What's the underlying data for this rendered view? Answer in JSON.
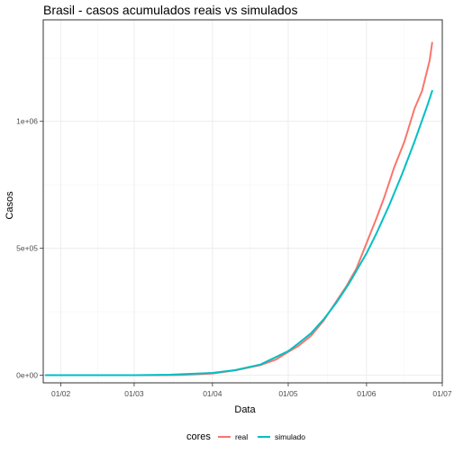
{
  "chart_data": {
    "type": "line",
    "title": "Brasil - casos acumulados reais vs simulados",
    "xlabel": "Data",
    "ylabel": "Casos",
    "x_tick_labels": [
      "01/02",
      "01/03",
      "01/04",
      "01/05",
      "01/06",
      "01/07"
    ],
    "x_tick_dates": [
      "2020-02-01",
      "2020-03-01",
      "2020-04-01",
      "2020-05-01",
      "2020-06-01",
      "2020-07-01"
    ],
    "y_tick_labels": [
      "0e+00",
      "5e+05",
      "1e+06"
    ],
    "y_tick_values": [
      0,
      500000,
      1000000
    ],
    "xlim": [
      "2020-01-25",
      "2020-07-01"
    ],
    "ylim": [
      -30000,
      1400000
    ],
    "grid": true,
    "legend": {
      "title": "cores",
      "position": "bottom"
    },
    "series": [
      {
        "name": "real",
        "color": "#F8766D",
        "points": [
          [
            "2020-01-26",
            0
          ],
          [
            "2020-02-15",
            0
          ],
          [
            "2020-03-01",
            0
          ],
          [
            "2020-03-10",
            30
          ],
          [
            "2020-03-20",
            900
          ],
          [
            "2020-04-01",
            6800
          ],
          [
            "2020-04-10",
            19000
          ],
          [
            "2020-04-20",
            40000
          ],
          [
            "2020-04-26",
            61000
          ],
          [
            "2020-05-01",
            92000
          ],
          [
            "2020-05-05",
            115000
          ],
          [
            "2020-05-10",
            155000
          ],
          [
            "2020-05-15",
            215000
          ],
          [
            "2020-05-20",
            290000
          ],
          [
            "2020-05-24",
            350000
          ],
          [
            "2020-05-28",
            420000
          ],
          [
            "2020-06-01",
            520000
          ],
          [
            "2020-06-05",
            620000
          ],
          [
            "2020-06-08",
            700000
          ],
          [
            "2020-06-12",
            820000
          ],
          [
            "2020-06-16",
            920000
          ],
          [
            "2020-06-20",
            1050000
          ],
          [
            "2020-06-23",
            1120000
          ],
          [
            "2020-06-26",
            1240000
          ],
          [
            "2020-06-27",
            1310000
          ]
        ]
      },
      {
        "name": "simulado",
        "color": "#00BFC4",
        "points": [
          [
            "2020-01-26",
            0
          ],
          [
            "2020-02-15",
            0
          ],
          [
            "2020-03-01",
            200
          ],
          [
            "2020-03-15",
            2000
          ],
          [
            "2020-04-01",
            9000
          ],
          [
            "2020-04-10",
            20000
          ],
          [
            "2020-04-20",
            42000
          ],
          [
            "2020-05-01",
            95000
          ],
          [
            "2020-05-05",
            125000
          ],
          [
            "2020-05-10",
            165000
          ],
          [
            "2020-05-15",
            220000
          ],
          [
            "2020-05-20",
            285000
          ],
          [
            "2020-05-25",
            360000
          ],
          [
            "2020-06-01",
            480000
          ],
          [
            "2020-06-05",
            560000
          ],
          [
            "2020-06-10",
            670000
          ],
          [
            "2020-06-15",
            790000
          ],
          [
            "2020-06-20",
            920000
          ],
          [
            "2020-06-25",
            1060000
          ],
          [
            "2020-06-27",
            1120000
          ]
        ]
      }
    ]
  }
}
